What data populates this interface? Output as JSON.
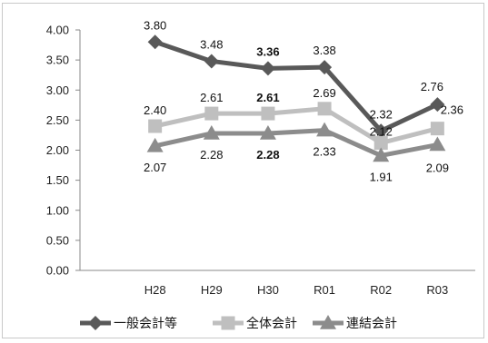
{
  "chart_data": {
    "type": "line",
    "categories": [
      "H28",
      "H29",
      "H30",
      "R01",
      "R02",
      "R03"
    ],
    "ylim": [
      0,
      4
    ],
    "yticks": [
      "0.00",
      "0.50",
      "1.00",
      "1.50",
      "2.00",
      "2.50",
      "3.00",
      "3.50",
      "4.00"
    ],
    "grid": false,
    "legend": "bottom",
    "series": [
      {
        "name": "一般会計等",
        "color": "#595959",
        "marker": "diamond",
        "values": [
          3.8,
          3.48,
          3.36,
          3.38,
          2.32,
          2.76
        ],
        "labels": [
          "3.80",
          "3.48",
          "3.36",
          "3.38",
          "2.32",
          "2.76"
        ]
      },
      {
        "name": "全体会計",
        "color": "#bfbfbf",
        "marker": "square",
        "values": [
          2.4,
          2.61,
          2.61,
          2.69,
          2.12,
          2.36
        ],
        "labels": [
          "2.40",
          "2.61",
          "2.61",
          "2.69",
          "2.12",
          "2.36"
        ]
      },
      {
        "name": "連結会計",
        "color": "#8c8c8c",
        "marker": "triangle",
        "values": [
          2.07,
          2.28,
          2.28,
          2.33,
          1.91,
          2.09
        ],
        "labels": [
          "2.07",
          "2.28",
          "2.28",
          "2.33",
          "1.91",
          "2.09"
        ]
      }
    ]
  }
}
